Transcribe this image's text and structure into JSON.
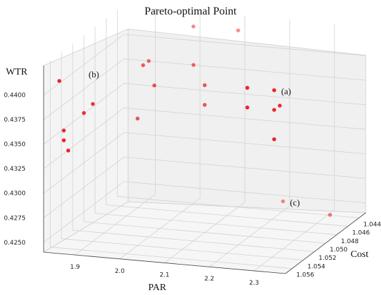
{
  "chart_data": {
    "type": "scatter",
    "title": "Pareto-optimal Point",
    "xlabel": "PAR",
    "ylabel": "Cost",
    "zlabel": "WTR",
    "x_ticks": [
      "1.9",
      "2.0",
      "2.1",
      "2.2",
      "2.3"
    ],
    "y_ticks": [
      "1.044",
      "1.046",
      "1.048",
      "1.050",
      "1.052",
      "1.054",
      "1.056"
    ],
    "z_ticks": [
      "0.4250",
      "0.4275",
      "0.4300",
      "0.4325",
      "0.4350",
      "0.4375",
      "0.4400"
    ],
    "marker_color": "#e8191e",
    "grid": true,
    "annotations": [
      {
        "text": "(a)",
        "x": 2.33,
        "y": 1.056,
        "z": 0.442
      },
      {
        "text": "(b)",
        "x": 1.9,
        "y": 1.056,
        "z": 0.442
      },
      {
        "text": "(c)",
        "x": 2.2,
        "y": 1.044,
        "z": 0.425
      }
    ],
    "points": [
      {
        "x": 1.85,
        "y": 1.056,
        "z": 0.441
      },
      {
        "x": 2.33,
        "y": 1.056,
        "z": 0.442
      },
      {
        "x": 2.27,
        "y": 1.056,
        "z": 0.442
      },
      {
        "x": 2.33,
        "y": 1.056,
        "z": 0.44
      },
      {
        "x": 2.33,
        "y": 1.055,
        "z": 0.44
      },
      {
        "x": 2.27,
        "y": 1.056,
        "z": 0.44
      },
      {
        "x": 2.33,
        "y": 1.056,
        "z": 0.437
      },
      {
        "x": 2.1,
        "y": 1.044,
        "z": 0.442
      },
      {
        "x": 2.0,
        "y": 1.044,
        "z": 0.442
      },
      {
        "x": 1.95,
        "y": 1.048,
        "z": 0.44
      },
      {
        "x": 1.95,
        "y": 1.049,
        "z": 0.44
      },
      {
        "x": 2.05,
        "y": 1.048,
        "z": 0.44
      },
      {
        "x": 2.0,
        "y": 1.051,
        "z": 0.439
      },
      {
        "x": 2.1,
        "y": 1.05,
        "z": 0.439
      },
      {
        "x": 2.1,
        "y": 1.05,
        "z": 0.437
      },
      {
        "x": 1.95,
        "y": 1.05,
        "z": 0.435
      },
      {
        "x": 1.9,
        "y": 1.054,
        "z": 0.438
      },
      {
        "x": 1.88,
        "y": 1.054,
        "z": 0.437
      },
      {
        "x": 1.86,
        "y": 1.056,
        "z": 0.436
      },
      {
        "x": 1.86,
        "y": 1.056,
        "z": 0.435
      },
      {
        "x": 1.87,
        "y": 1.056,
        "z": 0.434
      },
      {
        "x": 2.2,
        "y": 1.044,
        "z": 0.425
      },
      {
        "x": 2.33,
        "y": 1.046,
        "z": 0.425
      }
    ]
  }
}
